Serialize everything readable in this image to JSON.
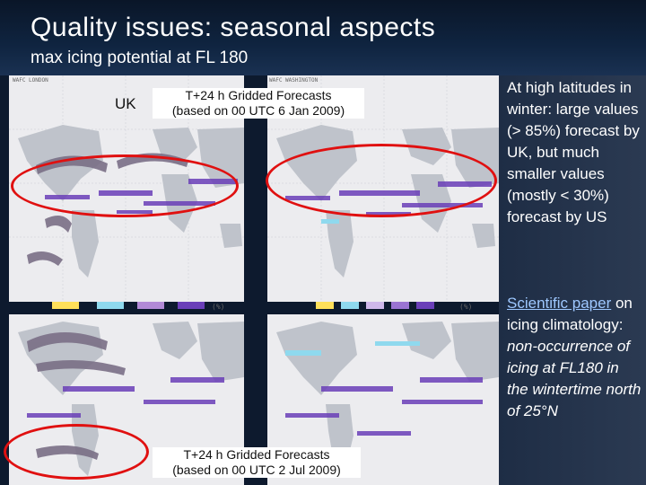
{
  "slide": {
    "title": "Quality issues: seasonal aspects",
    "subtitle": "max icing potential at FL 180"
  },
  "panels": {
    "uk_label": "UK",
    "top_caption_line1": "T+24 h Gridded Forecasts",
    "top_caption_line2": "(based on 00 UTC 6 Jan 2009)",
    "bottom_caption_line1": "T+24 h Gridded Forecasts",
    "bottom_caption_line2": "(based on 00 UTC 2 Jul 2009)",
    "uk_header_small": "WAFC LONDON",
    "us_header_small": "WAFC WASHINGTON",
    "legend_unit": "(%)",
    "legend_ticks": [
      "1",
      "10",
      "30",
      "50",
      "70",
      "85"
    ]
  },
  "sidebar": {
    "para1": "At high latitudes in winter: large values (> 85%) forecast by UK, but much smaller values (mostly < 30%) forecast by US",
    "link_text": "Scientific paper",
    "para2_plain": " on icing climatology: ",
    "para2_italic": "non-occurrence of icing at FL180 in the wintertime north of 25°N"
  },
  "colors": {
    "ellipse": "#e01010",
    "icing_purple": "#6a3fb8",
    "icing_gray": "#7a6f86",
    "icing_cyan": "#8fd9ee",
    "land": "#bfc3cb",
    "map_bg": "#ececef",
    "title_bg": "#0a1628"
  }
}
